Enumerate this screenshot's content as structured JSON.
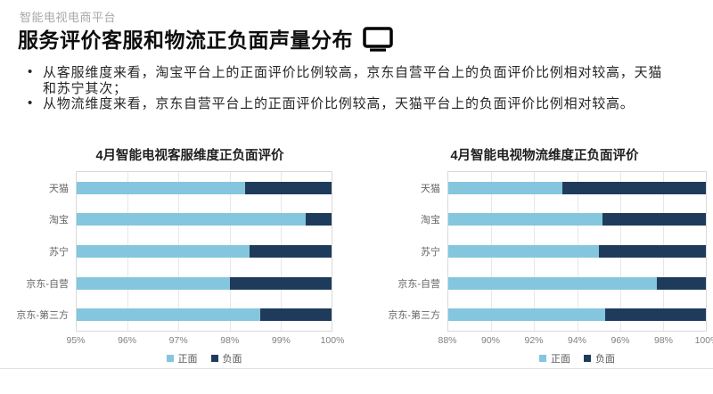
{
  "header": {
    "eyebrow": "智能电视电商平台",
    "title": "服务评价客服和物流正负面声量分布",
    "title_icon": "monitor-icon"
  },
  "bullets": [
    "从客服维度来看，淘宝平台上的正面评价比例较高，京东自营平台上的负面评价比例相对较高，天猫和苏宁其次；",
    "从物流维度来看，京东自营平台上的正面评价比例较高，天猫平台上的负面评价比例相对较高。"
  ],
  "colors": {
    "positive": "#84C6DD",
    "negative": "#1F3B5C",
    "gridline": "#E7E7E7",
    "divider": "#E0E0E0"
  },
  "chart_data": [
    {
      "type": "bar",
      "orientation": "horizontal",
      "stacked": true,
      "title": "4月智能电视客服维度正负面评价",
      "categories": [
        "天猫",
        "淘宝",
        "苏宁",
        "京东-自营",
        "京东-第三方"
      ],
      "series": [
        {
          "name": "正面",
          "color": "#84C6DD",
          "values": [
            98.3,
            99.5,
            98.4,
            98.0,
            98.6
          ]
        },
        {
          "name": "负面",
          "color": "#1F3B5C",
          "values": [
            1.7,
            0.5,
            1.6,
            2.0,
            1.4
          ]
        }
      ],
      "xlim": [
        95,
        100
      ],
      "tick_labels": [
        "95%",
        "96%",
        "97%",
        "98%",
        "99%",
        "100%"
      ],
      "unit": "%",
      "grid": true,
      "legend_position": "bottom"
    },
    {
      "type": "bar",
      "orientation": "horizontal",
      "stacked": true,
      "title": "4月智能电视物流维度正负面评价",
      "categories": [
        "天猫",
        "淘宝",
        "苏宁",
        "京东-自营",
        "京东-第三方"
      ],
      "series": [
        {
          "name": "正面",
          "color": "#84C6DD",
          "values": [
            93.3,
            95.2,
            95.0,
            97.7,
            95.3
          ]
        },
        {
          "name": "负面",
          "color": "#1F3B5C",
          "values": [
            6.7,
            4.8,
            5.0,
            2.3,
            4.7
          ]
        }
      ],
      "xlim": [
        88,
        100
      ],
      "tick_labels": [
        "88%",
        "90%",
        "92%",
        "94%",
        "96%",
        "98%",
        "100%"
      ],
      "unit": "%",
      "grid": true,
      "legend_position": "bottom"
    }
  ]
}
